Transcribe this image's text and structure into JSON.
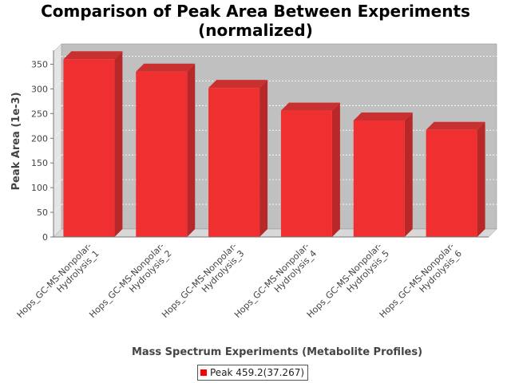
{
  "chart_data": {
    "type": "bar",
    "title_lines": [
      "Comparison of Peak Area Between Experiments",
      "(normalized)"
    ],
    "xlabel": "Mass Spectrum Experiments (Metabolite Profiles)",
    "ylabel": "Peak Area (1e-3)",
    "categories": [
      [
        "Hops_GC-MS-Nonpolar-",
        "Hydrolysis_1"
      ],
      [
        "Hops_GC-MS-Nonpolar-",
        "Hydrolysis_2"
      ],
      [
        "Hops_GC-MS-Nonpolar-",
        "Hydrolysis_3"
      ],
      [
        "Hops_GC-MS-Nonpolar-",
        "Hydrolysis_4"
      ],
      [
        "Hops_GC-MS-Nonpolar-",
        "Hydrolysis_5"
      ],
      [
        "Hops_GC-MS-Nonpolar-",
        "Hydrolysis_6"
      ]
    ],
    "series": [
      {
        "name": "Peak 459.2(37.267)",
        "values": [
          360,
          335,
          302,
          256,
          236,
          217
        ]
      }
    ],
    "ylim": [
      0,
      375
    ],
    "yticks": [
      0,
      50,
      100,
      150,
      200,
      250,
      300,
      350
    ],
    "grid": true,
    "legend_position": "bottom",
    "colors": {
      "bar": "#ff0000",
      "plot_bg": "#c0c0c0"
    }
  }
}
